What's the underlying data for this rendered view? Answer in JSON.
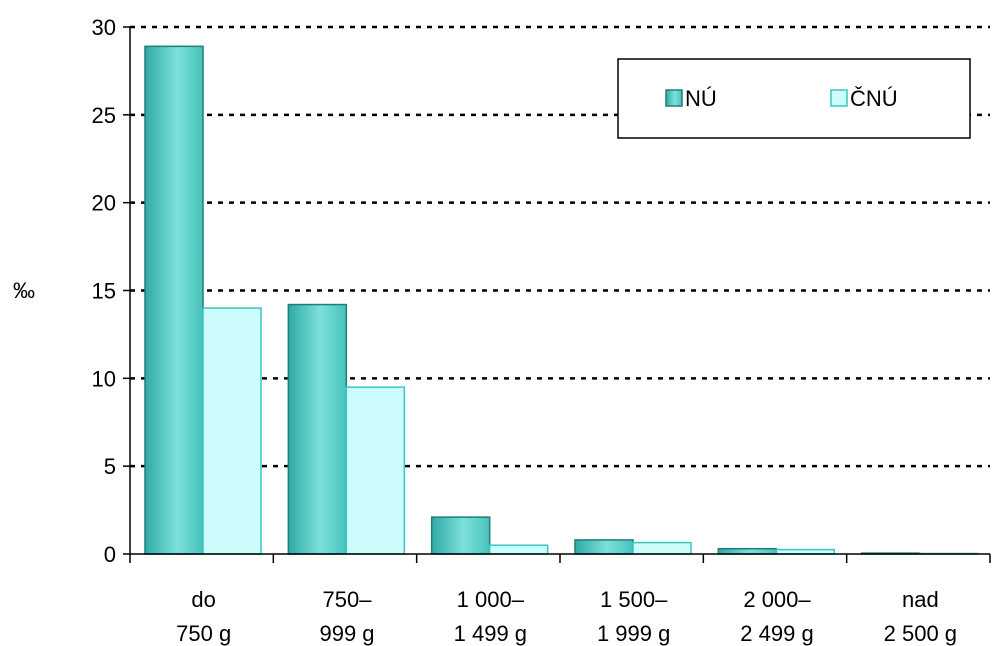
{
  "chart_data": {
    "type": "bar",
    "ylabel": "‰",
    "ylim": [
      0,
      30
    ],
    "yticks": [
      0,
      5,
      10,
      15,
      20,
      25,
      30
    ],
    "grid": "horizontal dotted",
    "legend_position": "top-right",
    "categories": [
      [
        "do",
        "750 g"
      ],
      [
        "750–",
        "999 g"
      ],
      [
        "1 000–",
        "1 499 g"
      ],
      [
        "1 500–",
        "1 999 g"
      ],
      [
        "2 000–",
        "2 499 g"
      ],
      [
        "nad",
        "2 500 g"
      ]
    ],
    "series": [
      {
        "name": "NÚ",
        "color": "#5ed2cc",
        "values": [
          28.9,
          14.2,
          2.1,
          0.8,
          0.3,
          0.05
        ]
      },
      {
        "name": "ČNÚ",
        "color": "#ccfcfc",
        "values": [
          14.0,
          9.5,
          0.5,
          0.65,
          0.25,
          0.03
        ]
      }
    ]
  }
}
